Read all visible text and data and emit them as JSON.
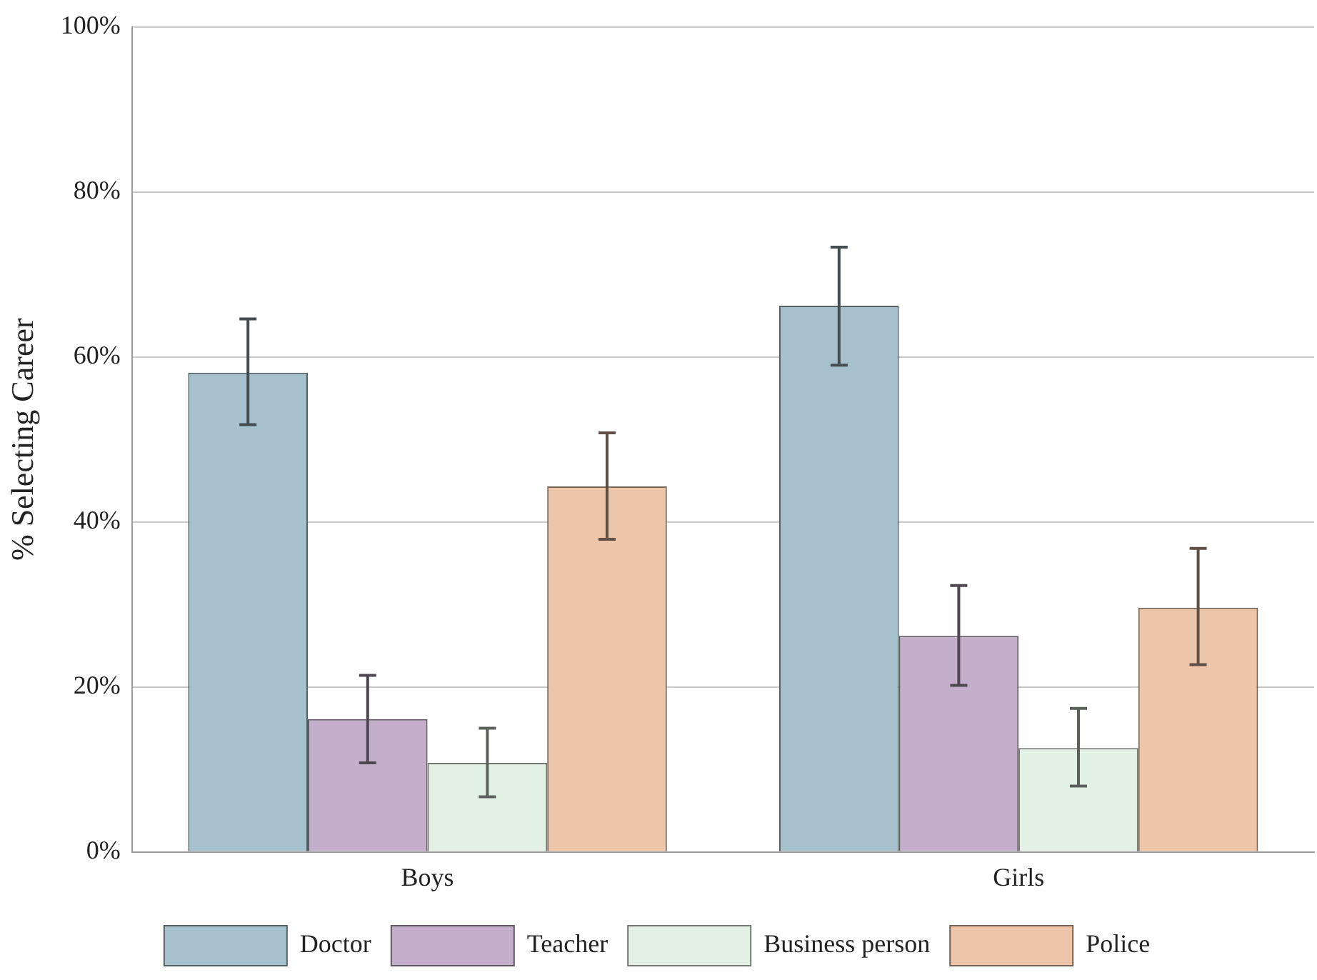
{
  "chart_data": {
    "type": "bar",
    "ylabel": "% Selecting Career",
    "categories": [
      "Boys",
      "Girls"
    ],
    "series": [
      {
        "name": "Doctor",
        "color": "#a7c1cc",
        "values": [
          58.1,
          66.2
        ],
        "errors": [
          [
            51.8,
            64.6
          ],
          [
            59.0,
            73.3
          ]
        ]
      },
      {
        "name": "Teacher",
        "color": "#c3afc9",
        "values": [
          16.1,
          26.2
        ],
        "errors": [
          [
            10.8,
            21.4
          ],
          [
            20.2,
            32.3
          ]
        ]
      },
      {
        "name": "Business person",
        "color": "#e3f0e4",
        "values": [
          10.8,
          12.6
        ],
        "errors": [
          [
            6.7,
            15.0
          ],
          [
            8.0,
            17.4
          ]
        ]
      },
      {
        "name": "Police",
        "color": "#edc5a9",
        "values": [
          44.3,
          29.6
        ],
        "errors": [
          [
            37.9,
            50.8
          ],
          [
            22.7,
            36.8
          ]
        ]
      }
    ],
    "ylim": [
      0,
      100
    ],
    "yticks": [
      {
        "value": 0,
        "label": "0%"
      },
      {
        "value": 20,
        "label": "20%"
      },
      {
        "value": 40,
        "label": "40%"
      },
      {
        "value": 60,
        "label": "60%"
      },
      {
        "value": 80,
        "label": "80%"
      },
      {
        "value": 100,
        "label": "100%"
      }
    ],
    "grid": "y",
    "legend": "bottom"
  }
}
